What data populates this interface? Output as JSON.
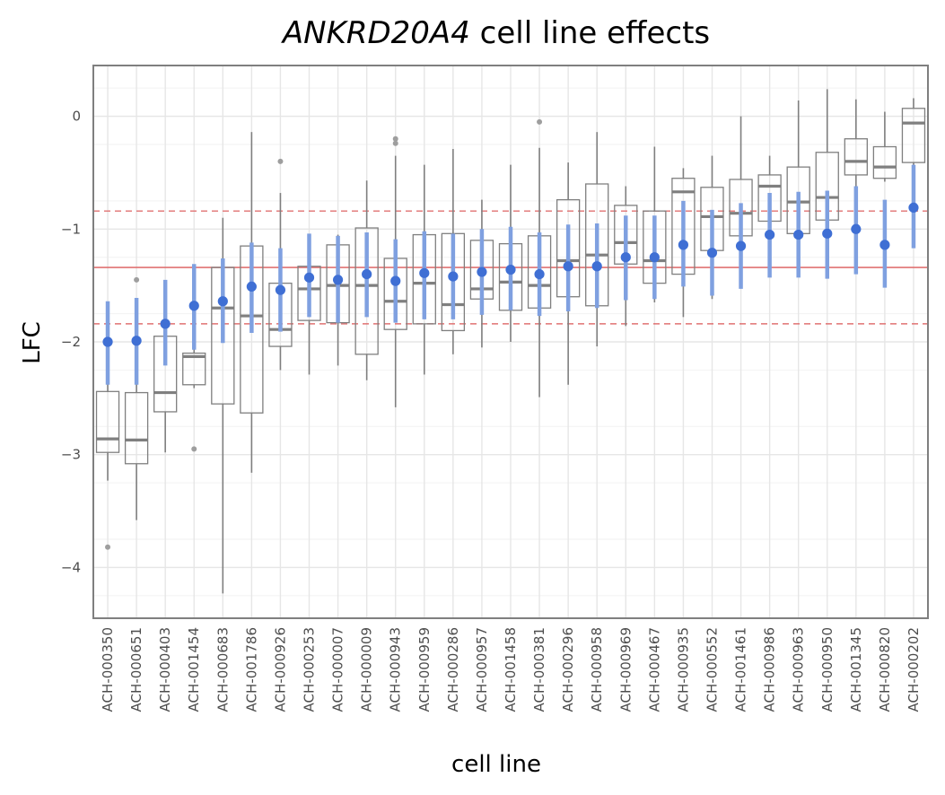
{
  "chart_data": {
    "type": "box",
    "title_gene": "ANKRD20A4",
    "title_rest": " cell line effects",
    "xlabel": "cell line",
    "ylabel": "LFC",
    "ylim": [
      -4.45,
      0.45
    ],
    "yticks": [
      0,
      -1,
      -2,
      -3,
      -4
    ],
    "ytick_labels": [
      "0",
      "−1",
      "−2",
      "−3",
      "−4"
    ],
    "grid": true,
    "reference_lines": {
      "mean": -1.34,
      "lower": -1.84,
      "upper": -0.84
    },
    "colors": {
      "box": "#7f7f7f",
      "point": "#3f6fd4",
      "interval": "#7fa0e0",
      "reference": "#e07272",
      "outlier": "#9e9e9e",
      "grid": "#e6e6e6",
      "panel_border": "#7f7f7f"
    },
    "categories": [
      "ACH-000350",
      "ACH-000651",
      "ACH-000403",
      "ACH-001454",
      "ACH-000683",
      "ACH-001786",
      "ACH-000926",
      "ACH-000253",
      "ACH-000007",
      "ACH-000009",
      "ACH-000943",
      "ACH-000959",
      "ACH-000286",
      "ACH-000957",
      "ACH-001458",
      "ACH-000381",
      "ACH-000296",
      "ACH-000958",
      "ACH-000969",
      "ACH-000467",
      "ACH-000935",
      "ACH-000552",
      "ACH-001461",
      "ACH-000986",
      "ACH-000963",
      "ACH-000950",
      "ACH-001345",
      "ACH-000820",
      "ACH-000202"
    ],
    "boxes": [
      {
        "whislo": -3.23,
        "q1": -2.98,
        "med": -2.86,
        "q3": -2.44,
        "whishi": -1.65,
        "fliers": [
          -3.82
        ]
      },
      {
        "whislo": -3.58,
        "q1": -3.08,
        "med": -2.87,
        "q3": -2.45,
        "whishi": -1.62,
        "fliers": [
          -1.45
        ]
      },
      {
        "whislo": -2.98,
        "q1": -2.62,
        "med": -2.45,
        "q3": -1.95,
        "whishi": -1.58,
        "fliers": []
      },
      {
        "whislo": -2.41,
        "q1": -2.38,
        "med": -2.13,
        "q3": -2.1,
        "whishi": -1.72,
        "fliers": [
          -2.95
        ]
      },
      {
        "whislo": -4.23,
        "q1": -2.55,
        "med": -1.7,
        "q3": -1.34,
        "whishi": -0.9,
        "fliers": []
      },
      {
        "whislo": -3.16,
        "q1": -2.63,
        "med": -1.77,
        "q3": -1.15,
        "whishi": -0.14,
        "fliers": []
      },
      {
        "whislo": -2.25,
        "q1": -2.04,
        "med": -1.89,
        "q3": -1.48,
        "whishi": -0.68,
        "fliers": [
          -0.4
        ]
      },
      {
        "whislo": -2.29,
        "q1": -1.81,
        "med": -1.53,
        "q3": -1.33,
        "whishi": -1.05,
        "fliers": []
      },
      {
        "whislo": -2.21,
        "q1": -1.83,
        "med": -1.5,
        "q3": -1.14,
        "whishi": -1.05,
        "fliers": []
      },
      {
        "whislo": -2.34,
        "q1": -2.11,
        "med": -1.5,
        "q3": -0.99,
        "whishi": -0.57,
        "fliers": []
      },
      {
        "whislo": -2.58,
        "q1": -1.89,
        "med": -1.64,
        "q3": -1.26,
        "whishi": -0.35,
        "fliers": [
          -0.2,
          -0.24
        ]
      },
      {
        "whislo": -2.29,
        "q1": -1.84,
        "med": -1.48,
        "q3": -1.05,
        "whishi": -0.43,
        "fliers": []
      },
      {
        "whislo": -2.11,
        "q1": -1.9,
        "med": -1.67,
        "q3": -1.04,
        "whishi": -0.29,
        "fliers": []
      },
      {
        "whislo": -2.05,
        "q1": -1.62,
        "med": -1.53,
        "q3": -1.1,
        "whishi": -0.74,
        "fliers": []
      },
      {
        "whislo": -2.0,
        "q1": -1.72,
        "med": -1.47,
        "q3": -1.13,
        "whishi": -0.43,
        "fliers": []
      },
      {
        "whislo": -2.49,
        "q1": -1.7,
        "med": -1.5,
        "q3": -1.06,
        "whishi": -0.28,
        "fliers": [
          -0.05
        ]
      },
      {
        "whislo": -2.38,
        "q1": -1.6,
        "med": -1.28,
        "q3": -0.74,
        "whishi": -0.41,
        "fliers": []
      },
      {
        "whislo": -2.04,
        "q1": -1.68,
        "med": -1.23,
        "q3": -0.6,
        "whishi": -0.14,
        "fliers": []
      },
      {
        "whislo": -1.86,
        "q1": -1.31,
        "med": -1.12,
        "q3": -0.79,
        "whishi": -0.62,
        "fliers": []
      },
      {
        "whislo": -1.65,
        "q1": -1.48,
        "med": -1.28,
        "q3": -0.84,
        "whishi": -0.27,
        "fliers": []
      },
      {
        "whislo": -1.78,
        "q1": -1.4,
        "med": -0.67,
        "q3": -0.55,
        "whishi": -0.46,
        "fliers": []
      },
      {
        "whislo": -1.62,
        "q1": -1.19,
        "med": -0.89,
        "q3": -0.63,
        "whishi": -0.35,
        "fliers": []
      },
      {
        "whislo": -1.4,
        "q1": -1.06,
        "med": -0.86,
        "q3": -0.56,
        "whishi": 0.0,
        "fliers": []
      },
      {
        "whislo": -1.08,
        "q1": -0.93,
        "med": -0.62,
        "q3": -0.52,
        "whishi": -0.35,
        "fliers": []
      },
      {
        "whislo": -1.34,
        "q1": -1.04,
        "med": -0.76,
        "q3": -0.45,
        "whishi": 0.14,
        "fliers": []
      },
      {
        "whislo": -1.42,
        "q1": -0.92,
        "med": -0.72,
        "q3": -0.32,
        "whishi": 0.24,
        "fliers": []
      },
      {
        "whislo": -0.66,
        "q1": -0.52,
        "med": -0.4,
        "q3": -0.2,
        "whishi": 0.15,
        "fliers": []
      },
      {
        "whislo": -0.58,
        "q1": -0.55,
        "med": -0.45,
        "q3": -0.27,
        "whishi": 0.04,
        "fliers": []
      },
      {
        "whislo": -0.53,
        "q1": -0.41,
        "med": -0.06,
        "q3": 0.07,
        "whishi": 0.16,
        "fliers": []
      }
    ],
    "estimates": [
      {
        "mean": -2.0,
        "lo": -2.38,
        "hi": -1.64
      },
      {
        "mean": -1.99,
        "lo": -2.38,
        "hi": -1.61
      },
      {
        "mean": -1.84,
        "lo": -2.21,
        "hi": -1.45
      },
      {
        "mean": -1.68,
        "lo": -2.07,
        "hi": -1.31
      },
      {
        "mean": -1.64,
        "lo": -2.01,
        "hi": -1.26
      },
      {
        "mean": -1.51,
        "lo": -1.92,
        "hi": -1.12
      },
      {
        "mean": -1.54,
        "lo": -1.91,
        "hi": -1.17
      },
      {
        "mean": -1.43,
        "lo": -1.78,
        "hi": -1.04
      },
      {
        "mean": -1.45,
        "lo": -1.83,
        "hi": -1.06
      },
      {
        "mean": -1.4,
        "lo": -1.78,
        "hi": -1.03
      },
      {
        "mean": -1.46,
        "lo": -1.83,
        "hi": -1.09
      },
      {
        "mean": -1.39,
        "lo": -1.8,
        "hi": -1.02
      },
      {
        "mean": -1.42,
        "lo": -1.8,
        "hi": -1.04
      },
      {
        "mean": -1.38,
        "lo": -1.76,
        "hi": -1.0
      },
      {
        "mean": -1.36,
        "lo": -1.72,
        "hi": -0.98
      },
      {
        "mean": -1.4,
        "lo": -1.77,
        "hi": -1.03
      },
      {
        "mean": -1.33,
        "lo": -1.73,
        "hi": -0.96
      },
      {
        "mean": -1.33,
        "lo": -1.7,
        "hi": -0.95
      },
      {
        "mean": -1.25,
        "lo": -1.63,
        "hi": -0.88
      },
      {
        "mean": -1.25,
        "lo": -1.62,
        "hi": -0.88
      },
      {
        "mean": -1.14,
        "lo": -1.51,
        "hi": -0.75
      },
      {
        "mean": -1.21,
        "lo": -1.59,
        "hi": -0.83
      },
      {
        "mean": -1.15,
        "lo": -1.53,
        "hi": -0.77
      },
      {
        "mean": -1.05,
        "lo": -1.43,
        "hi": -0.68
      },
      {
        "mean": -1.05,
        "lo": -1.43,
        "hi": -0.67
      },
      {
        "mean": -1.04,
        "lo": -1.44,
        "hi": -0.66
      },
      {
        "mean": -1.0,
        "lo": -1.4,
        "hi": -0.62
      },
      {
        "mean": -1.14,
        "lo": -1.52,
        "hi": -0.74
      },
      {
        "mean": -0.81,
        "lo": -1.17,
        "hi": -0.43
      }
    ]
  }
}
